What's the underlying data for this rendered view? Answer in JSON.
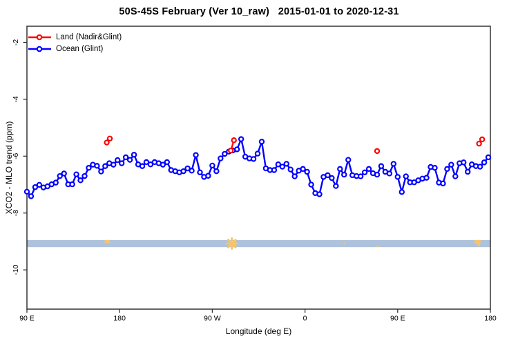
{
  "title": "50S-45S February (Ver 10_raw)   2015-01-01 to 2020-12-31",
  "chart_data": {
    "type": "line",
    "title": "50S-45S February (Ver 10_raw)   2015-01-01 to 2020-12-31",
    "xlabel": "Longitude (deg E)",
    "ylabel": "XCO2 - MLO trend (ppm)",
    "xlim": [
      90,
      540
    ],
    "ylim": [
      -11.38,
      -1.43
    ],
    "grid": false,
    "x_ticks": [
      {
        "value": 90,
        "label": "90 E"
      },
      {
        "value": 180,
        "label": "180"
      },
      {
        "value": 270,
        "label": "90 W"
      },
      {
        "value": 360,
        "label": "0"
      },
      {
        "value": 450,
        "label": "90 E"
      },
      {
        "value": 540,
        "label": "180"
      }
    ],
    "y_ticks": [
      {
        "value": -2,
        "label": "-2"
      },
      {
        "value": -4,
        "label": "-4"
      },
      {
        "value": -6,
        "label": "-6"
      },
      {
        "value": -8,
        "label": "-8"
      },
      {
        "value": -10,
        "label": "-10"
      }
    ],
    "legend": [
      {
        "label": "Land (Nadir&Glint)",
        "color": "#FF0000"
      },
      {
        "label": "Ocean (Glint)",
        "color": "#0000FF"
      }
    ],
    "series": [
      {
        "name": "Ocean (Glint)",
        "color": "#0000FF",
        "marker": "open-circle",
        "line": true,
        "points": [
          [
            90,
            -7.25
          ],
          [
            94,
            -7.41
          ],
          [
            98,
            -7.09
          ],
          [
            102,
            -7.01
          ],
          [
            106,
            -7.1
          ],
          [
            110,
            -7.06
          ],
          [
            114,
            -6.99
          ],
          [
            118,
            -6.93
          ],
          [
            122,
            -6.7
          ],
          [
            126,
            -6.61
          ],
          [
            130,
            -6.99
          ],
          [
            134,
            -6.99
          ],
          [
            138,
            -6.64
          ],
          [
            142,
            -6.85
          ],
          [
            146,
            -6.7
          ],
          [
            150,
            -6.41
          ],
          [
            154,
            -6.3
          ],
          [
            158,
            -6.34
          ],
          [
            162,
            -6.54
          ],
          [
            166,
            -6.35
          ],
          [
            170,
            -6.25
          ],
          [
            174,
            -6.3
          ],
          [
            178,
            -6.14
          ],
          [
            182,
            -6.25
          ],
          [
            186,
            -6.04
          ],
          [
            190,
            -6.13
          ],
          [
            194,
            -5.95
          ],
          [
            198,
            -6.29
          ],
          [
            202,
            -6.35
          ],
          [
            206,
            -6.21
          ],
          [
            210,
            -6.29
          ],
          [
            214,
            -6.21
          ],
          [
            218,
            -6.25
          ],
          [
            222,
            -6.3
          ],
          [
            226,
            -6.21
          ],
          [
            230,
            -6.49
          ],
          [
            234,
            -6.53
          ],
          [
            238,
            -6.57
          ],
          [
            242,
            -6.53
          ],
          [
            246,
            -6.43
          ],
          [
            250,
            -6.51
          ],
          [
            254,
            -5.96
          ],
          [
            258,
            -6.57
          ],
          [
            262,
            -6.73
          ],
          [
            266,
            -6.69
          ],
          [
            270,
            -6.33
          ],
          [
            274,
            -6.53
          ],
          [
            278,
            -6.08
          ],
          [
            282,
            -5.92
          ],
          [
            286,
            -5.84
          ],
          [
            290,
            -5.8
          ],
          [
            294,
            -5.76
          ],
          [
            298,
            -5.4
          ],
          [
            302,
            -6.02
          ],
          [
            306,
            -6.08
          ],
          [
            310,
            -6.1
          ],
          [
            314,
            -5.91
          ],
          [
            318,
            -5.49
          ],
          [
            322,
            -6.43
          ],
          [
            326,
            -6.49
          ],
          [
            330,
            -6.49
          ],
          [
            334,
            -6.29
          ],
          [
            338,
            -6.37
          ],
          [
            342,
            -6.27
          ],
          [
            346,
            -6.47
          ],
          [
            350,
            -6.71
          ],
          [
            354,
            -6.51
          ],
          [
            358,
            -6.45
          ],
          [
            362,
            -6.55
          ],
          [
            366,
            -7.0
          ],
          [
            370,
            -7.3
          ],
          [
            374,
            -7.34
          ],
          [
            378,
            -6.73
          ],
          [
            382,
            -6.67
          ],
          [
            386,
            -6.77
          ],
          [
            390,
            -7.05
          ],
          [
            394,
            -6.45
          ],
          [
            398,
            -6.65
          ],
          [
            402,
            -6.13
          ],
          [
            406,
            -6.67
          ],
          [
            410,
            -6.7
          ],
          [
            414,
            -6.71
          ],
          [
            418,
            -6.57
          ],
          [
            422,
            -6.45
          ],
          [
            426,
            -6.6
          ],
          [
            430,
            -6.65
          ],
          [
            434,
            -6.35
          ],
          [
            438,
            -6.55
          ],
          [
            442,
            -6.61
          ],
          [
            446,
            -6.27
          ],
          [
            450,
            -6.73
          ],
          [
            454,
            -7.26
          ],
          [
            458,
            -6.71
          ],
          [
            462,
            -6.92
          ],
          [
            466,
            -6.92
          ],
          [
            470,
            -6.85
          ],
          [
            474,
            -6.79
          ],
          [
            478,
            -6.76
          ],
          [
            482,
            -6.38
          ],
          [
            486,
            -6.41
          ],
          [
            490,
            -6.93
          ],
          [
            494,
            -6.96
          ],
          [
            498,
            -6.45
          ],
          [
            502,
            -6.3
          ],
          [
            506,
            -6.71
          ],
          [
            510,
            -6.25
          ],
          [
            514,
            -6.22
          ],
          [
            518,
            -6.55
          ],
          [
            522,
            -6.29
          ],
          [
            526,
            -6.35
          ],
          [
            530,
            -6.37
          ],
          [
            534,
            -6.22
          ],
          [
            538,
            -6.04
          ]
        ]
      },
      {
        "name": "Land (Nadir&Glint)",
        "color": "#FF0000",
        "marker": "open-circle",
        "line": true,
        "points": [
          [
            167.5,
            -5.52
          ],
          [
            170.5,
            -5.38
          ],
          [
            288,
            -5.8
          ],
          [
            291,
            -5.44
          ],
          [
            430,
            -5.82
          ],
          [
            529,
            -5.56
          ],
          [
            532,
            -5.41
          ]
        ]
      }
    ],
    "land_strip": {
      "color": "#AEC2DD",
      "mark_color": "#F6C46A",
      "lon_from": 90,
      "lon_to": 540,
      "value_top": -8.95,
      "value_bottom": -9.2,
      "marks": [
        {
          "shape": "rect",
          "lon_from": 165.5,
          "lon_to": 170.5,
          "y_frac_from": 0,
          "y_frac_to": 0.45
        },
        {
          "shape": "star",
          "lon_center": 289,
          "size": 15
        },
        {
          "shape": "rect",
          "lon_from": 290.5,
          "lon_to": 293,
          "y_frac_from": 0,
          "y_frac_to": 1
        },
        {
          "shape": "rect",
          "lon_from": 397.5,
          "lon_to": 398.8,
          "y_frac_from": 0.3,
          "y_frac_to": 0.55
        },
        {
          "shape": "rect",
          "lon_from": 429.5,
          "lon_to": 431.5,
          "y_frac_from": 0.75,
          "y_frac_to": 1
        },
        {
          "shape": "rect",
          "lon_from": 524.5,
          "lon_to": 530.5,
          "y_frac_from": 0,
          "y_frac_to": 0.5
        },
        {
          "shape": "rect",
          "lon_from": 527.5,
          "lon_to": 530,
          "y_frac_from": 0.5,
          "y_frac_to": 0.85
        }
      ]
    }
  }
}
